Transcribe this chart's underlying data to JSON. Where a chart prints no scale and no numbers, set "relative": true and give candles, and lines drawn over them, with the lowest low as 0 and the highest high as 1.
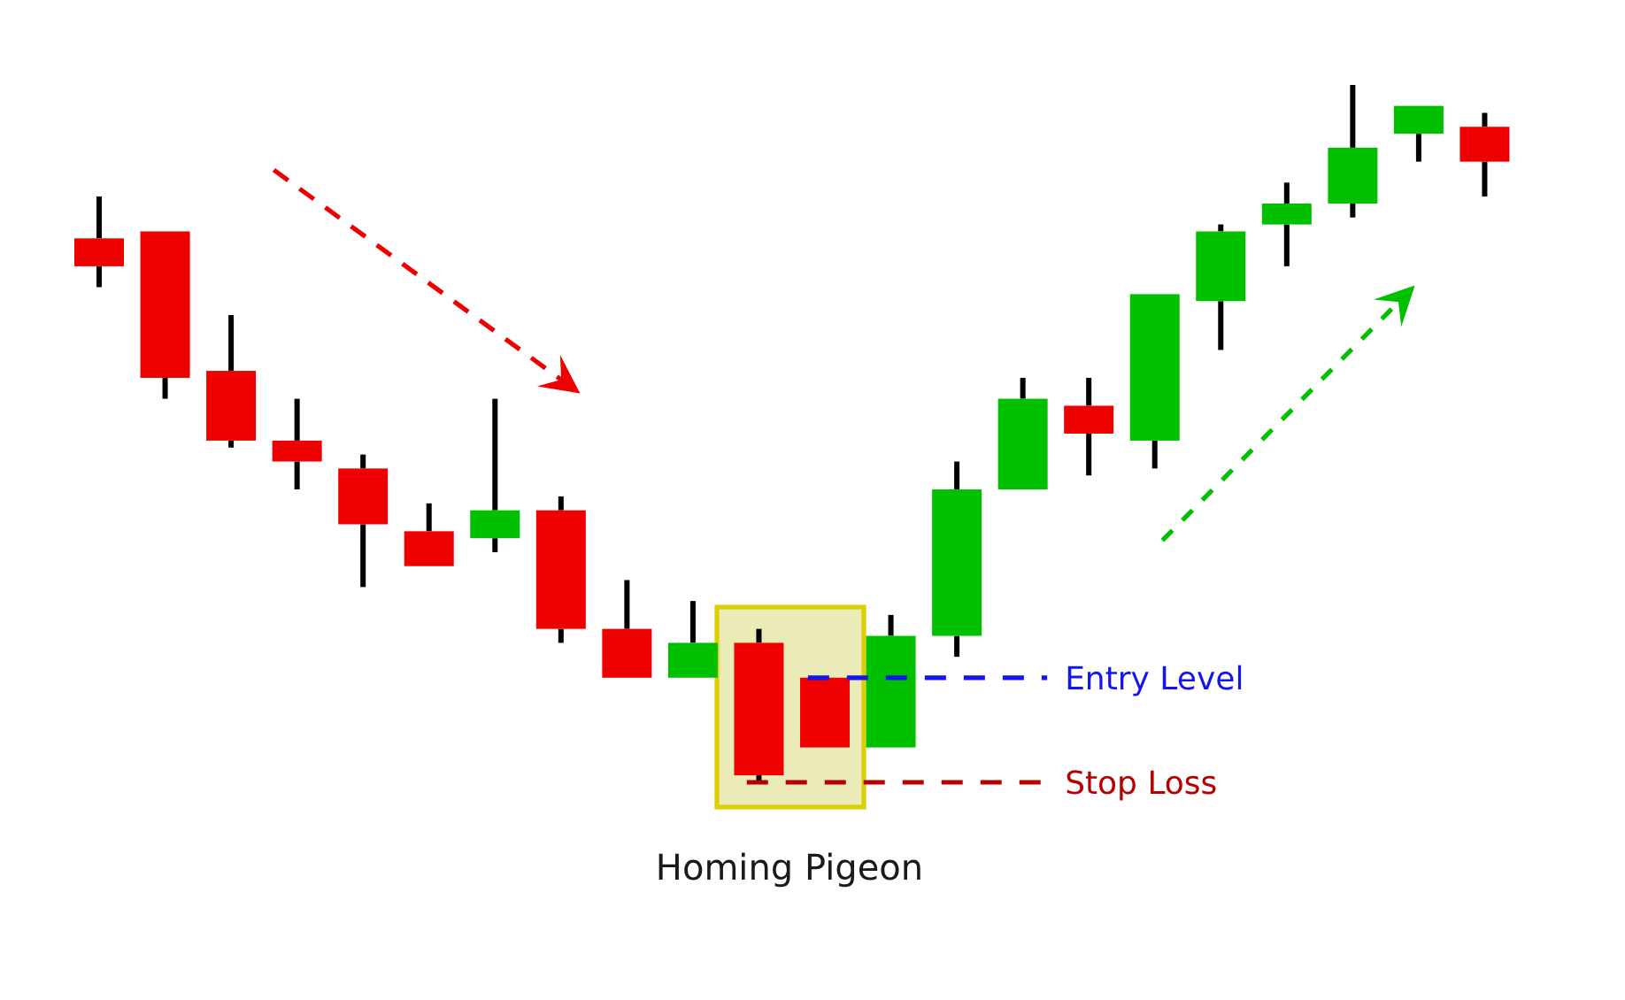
{
  "chart_data": {
    "type": "candlestick",
    "relative": true,
    "categories": [
      null,
      null,
      null,
      null,
      null,
      null,
      null,
      null,
      null,
      null,
      null,
      null,
      null,
      null,
      null,
      null,
      null,
      null,
      null,
      null,
      null,
      null
    ],
    "ohlc": [
      [
        0.78,
        0.84,
        0.71,
        0.74
      ],
      [
        0.79,
        0.79,
        0.55,
        0.58
      ],
      [
        0.59,
        0.67,
        0.48,
        0.49
      ],
      [
        0.49,
        0.55,
        0.42,
        0.46
      ],
      [
        0.45,
        0.47,
        0.28,
        0.37
      ],
      [
        0.36,
        0.4,
        0.31,
        0.31
      ],
      [
        0.35,
        0.55,
        0.33,
        0.39
      ],
      [
        0.39,
        0.41,
        0.2,
        0.22
      ],
      [
        0.22,
        0.29,
        0.15,
        0.15
      ],
      [
        0.15,
        0.26,
        0.15,
        0.2
      ],
      [
        0.2,
        0.22,
        0,
        0.01
      ],
      [
        0.15,
        0.15,
        0.05,
        0.05
      ],
      [
        0.05,
        0.24,
        0.05,
        0.21
      ],
      [
        0.21,
        0.46,
        0.18,
        0.42
      ],
      [
        0.42,
        0.58,
        0.42,
        0.55
      ],
      [
        0.54,
        0.58,
        0.44,
        0.5
      ],
      [
        0.49,
        0.7,
        0.45,
        0.7
      ],
      [
        0.69,
        0.8,
        0.62,
        0.79
      ],
      [
        0.8,
        0.86,
        0.74,
        0.83
      ],
      [
        0.83,
        1,
        0.81,
        0.91
      ],
      [
        0.93,
        0.97,
        0.89,
        0.97
      ],
      [
        0.94,
        0.96,
        0.84,
        0.89
      ]
    ],
    "colors": [
      "#ee0000",
      "#ee0000",
      "#ee0000",
      "#ee0000",
      "#ee0000",
      "#ee0000",
      "#00c000",
      "#ee0000",
      "#ee0000",
      "#00c000",
      "#ee0000",
      "#ee0000",
      "#00c000",
      "#00c000",
      "#00c000",
      "#ee0000",
      "#00c000",
      "#00c000",
      "#00c000",
      "#00c000",
      "#00c000",
      "#ee0000"
    ],
    "annotations": [
      "Homing Pigeon"
    ],
    "ref_lines": [
      {
        "axis": "y",
        "value": 0.15,
        "label": "Entry Level",
        "color": "#1414f0",
        "line_style": "dashed"
      },
      {
        "axis": "y",
        "value": 0,
        "label": "Stop Loss",
        "color": "#b40000",
        "line_style": "dashed"
      }
    ]
  }
}
